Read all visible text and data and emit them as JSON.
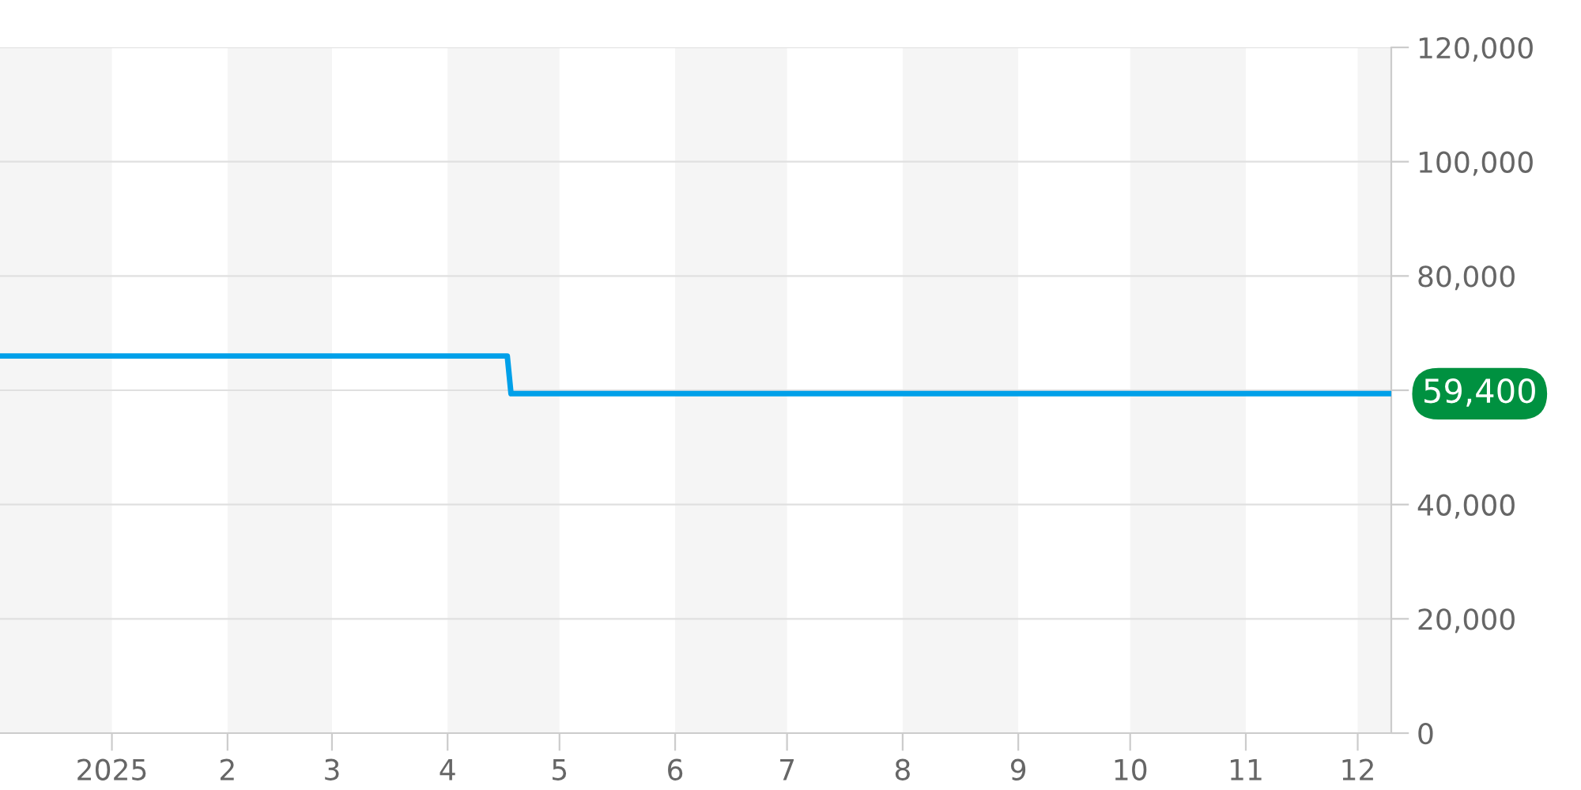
{
  "chart_data": {
    "type": "line",
    "series": [
      {
        "color": "#00a0e9",
        "x": [
          "2024-12-02",
          "2025-04-17",
          "2025-04-18",
          "2025-12-10"
        ],
        "values": [
          66000,
          66000,
          59400,
          59400
        ]
      }
    ],
    "xlim": [
      "2024-12-02",
      "2025-12-10"
    ],
    "xticks": [
      {
        "value": "2025-01",
        "label": "2025"
      },
      {
        "value": "2025-02",
        "label": "2"
      },
      {
        "value": "2025-03",
        "label": "3"
      },
      {
        "value": "2025-04",
        "label": "4"
      },
      {
        "value": "2025-05",
        "label": "5"
      },
      {
        "value": "2025-06",
        "label": "6"
      },
      {
        "value": "2025-07",
        "label": "7"
      },
      {
        "value": "2025-08",
        "label": "8"
      },
      {
        "value": "2025-09",
        "label": "9"
      },
      {
        "value": "2025-10",
        "label": "10"
      },
      {
        "value": "2025-11",
        "label": "11"
      },
      {
        "value": "2025-12",
        "label": "12"
      }
    ],
    "ylim": [
      0,
      120000
    ],
    "yticks": [
      {
        "value": 0,
        "label": "0"
      },
      {
        "value": 20000,
        "label": "20,000"
      },
      {
        "value": 40000,
        "label": "40,000"
      },
      {
        "value": 60000,
        "label": null
      },
      {
        "value": 80000,
        "label": "80,000"
      },
      {
        "value": 100000,
        "label": "100,000"
      },
      {
        "value": 120000,
        "label": "120,000"
      }
    ],
    "bands": [
      {
        "axis": "x",
        "from": "2024-12",
        "to": "2025-01",
        "color": "#f5f5f5"
      },
      {
        "axis": "x",
        "from": "2025-02",
        "to": "2025-03",
        "color": "#f5f5f5"
      },
      {
        "axis": "x",
        "from": "2025-04",
        "to": "2025-05",
        "color": "#f5f5f5"
      },
      {
        "axis": "x",
        "from": "2025-06",
        "to": "2025-07",
        "color": "#f5f5f5"
      },
      {
        "axis": "x",
        "from": "2025-08",
        "to": "2025-09",
        "color": "#f5f5f5"
      },
      {
        "axis": "x",
        "from": "2025-10",
        "to": "2025-11",
        "color": "#f5f5f5"
      },
      {
        "axis": "x",
        "from": "2025-12",
        "to": "2026-01",
        "color": "#f5f5f5"
      }
    ],
    "annotations": [
      {
        "text": "59,400",
        "x": "2025-12-10",
        "y": 59400
      }
    ],
    "grid": "y",
    "line_style": "solid",
    "marker": "none"
  }
}
